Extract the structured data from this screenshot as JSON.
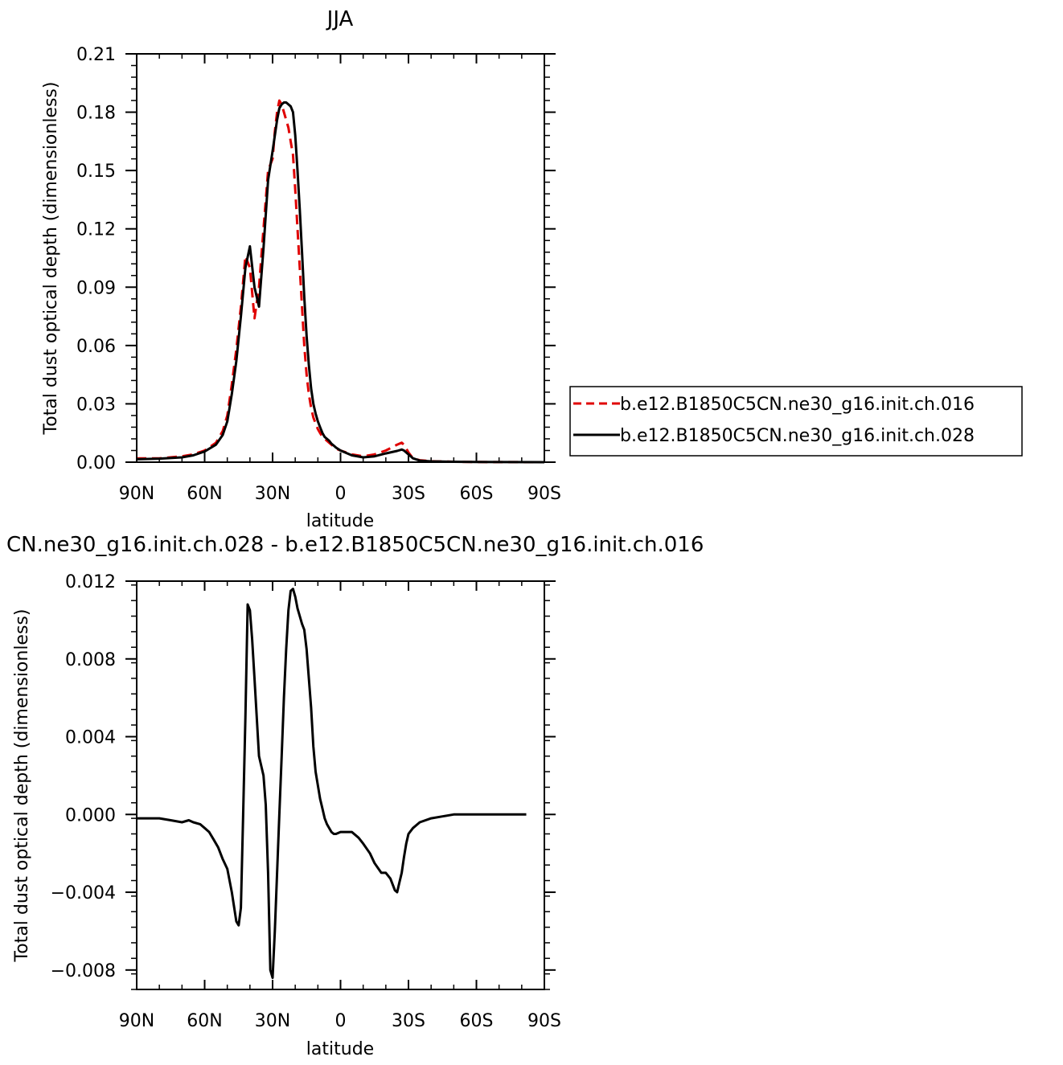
{
  "chart_data": [
    {
      "type": "line",
      "title": "JJA",
      "xlabel": "latitude",
      "ylabel": "Total dust optical depth (dimensionless)",
      "xlim": [
        90,
        -90
      ],
      "ylim": [
        0,
        0.21
      ],
      "xticks": [
        90,
        60,
        30,
        0,
        -30,
        -60,
        -90
      ],
      "xtick_labels": [
        "90N",
        "60N",
        "30N",
        "0",
        "30S",
        "60S",
        "90S"
      ],
      "yticks": [
        0,
        0.03,
        0.06,
        0.09,
        0.12,
        0.15,
        0.18,
        0.21
      ],
      "ytick_labels": [
        "0.00",
        "0.03",
        "0.06",
        "0.09",
        "0.12",
        "0.15",
        "0.18",
        "0.21"
      ],
      "grid": false,
      "legend_position": "right",
      "series": [
        {
          "name": "b.e12.B1850C5CN.ne30_g16.init.ch.016",
          "color": "#e00000",
          "dash": "dashed",
          "x": [
            90,
            80,
            70,
            65,
            60,
            55,
            52,
            50,
            48,
            46,
            44,
            42,
            40,
            38,
            36,
            34,
            32,
            30,
            29,
            28,
            27,
            26,
            25,
            24,
            23,
            22,
            21,
            20,
            19,
            18,
            17,
            16,
            15,
            14,
            13,
            12,
            11,
            10,
            9,
            8,
            7,
            6,
            5,
            4,
            3,
            2,
            0,
            -5,
            -10,
            -15,
            -20,
            -25,
            -27,
            -28,
            -30,
            -32,
            -35,
            -40,
            -50,
            -60,
            -90
          ],
          "y": [
            0.002,
            0.002,
            0.003,
            0.004,
            0.006,
            0.01,
            0.016,
            0.024,
            0.04,
            0.058,
            0.08,
            0.106,
            0.1,
            0.074,
            0.09,
            0.12,
            0.15,
            0.156,
            0.17,
            0.18,
            0.186,
            0.184,
            0.18,
            0.176,
            0.172,
            0.165,
            0.158,
            0.14,
            0.12,
            0.1,
            0.08,
            0.06,
            0.045,
            0.035,
            0.028,
            0.023,
            0.02,
            0.017,
            0.015,
            0.013,
            0.012,
            0.011,
            0.01,
            0.009,
            0.008,
            0.007,
            0.006,
            0.004,
            0.003,
            0.004,
            0.006,
            0.009,
            0.01,
            0.009,
            0.005,
            0.002,
            0.001,
            0.0005,
            0.0002,
            0.0001,
            0.0
          ]
        },
        {
          "name": "b.e12.B1850C5CN.ne30_g16.init.ch.028",
          "color": "#000000",
          "dash": "solid",
          "x": [
            90,
            80,
            70,
            65,
            60,
            55,
            52,
            50,
            48,
            46,
            44,
            42,
            40,
            38,
            36,
            34,
            32,
            30,
            29,
            28,
            27,
            26,
            25,
            24,
            23,
            22,
            21,
            20,
            19,
            18,
            17,
            16,
            15,
            14,
            13,
            12,
            11,
            10,
            9,
            8,
            7,
            6,
            5,
            4,
            3,
            2,
            0,
            -5,
            -10,
            -15,
            -20,
            -25,
            -27,
            -28,
            -30,
            -32,
            -35,
            -40,
            -50,
            -60,
            -90
          ],
          "y": [
            0.0015,
            0.0018,
            0.0025,
            0.0035,
            0.0055,
            0.009,
            0.014,
            0.021,
            0.035,
            0.052,
            0.075,
            0.1,
            0.111,
            0.09,
            0.08,
            0.11,
            0.145,
            0.16,
            0.168,
            0.176,
            0.182,
            0.184,
            0.185,
            0.185,
            0.184,
            0.183,
            0.18,
            0.168,
            0.15,
            0.13,
            0.108,
            0.085,
            0.065,
            0.05,
            0.038,
            0.03,
            0.025,
            0.021,
            0.018,
            0.015,
            0.013,
            0.012,
            0.011,
            0.0095,
            0.0085,
            0.0075,
            0.006,
            0.0035,
            0.0025,
            0.003,
            0.0045,
            0.0058,
            0.0065,
            0.006,
            0.004,
            0.002,
            0.0008,
            0.0004,
            0.0002,
            0.0001,
            0.0
          ]
        }
      ]
    },
    {
      "type": "line",
      "title": "CN.ne30_g16.init.ch.028 - b.e12.B1850C5CN.ne30_g16.init.ch.016",
      "xlabel": "latitude",
      "ylabel": "Total dust optical depth (dimensionless)",
      "xlim": [
        90,
        -90
      ],
      "ylim": [
        -0.009,
        0.012
      ],
      "xticks": [
        90,
        60,
        30,
        0,
        -30,
        -60,
        -90
      ],
      "xtick_labels": [
        "90N",
        "60N",
        "30N",
        "0",
        "30S",
        "60S",
        "90S"
      ],
      "yticks": [
        -0.008,
        -0.004,
        0.0,
        0.004,
        0.008,
        0.012
      ],
      "ytick_labels": [
        "-0.008",
        "-0.004",
        "0.000",
        "0.004",
        "0.008",
        "0.012"
      ],
      "grid": false,
      "series": [
        {
          "color": "#000000",
          "dash": "solid",
          "x": [
            90,
            80,
            75,
            70,
            67,
            65,
            62,
            60,
            58,
            56,
            54,
            52,
            50,
            48,
            46,
            45,
            44,
            43,
            42,
            41,
            40,
            39,
            38,
            37,
            36,
            35,
            34,
            33,
            32,
            31,
            30,
            29,
            28,
            27,
            26,
            25,
            24,
            23,
            22,
            21,
            20,
            19,
            18,
            17,
            16,
            15,
            14,
            13,
            12,
            11,
            10,
            9,
            8,
            7,
            6,
            5,
            4,
            3,
            2,
            0,
            -3,
            -5,
            -8,
            -10,
            -13,
            -15,
            -18,
            -20,
            -22,
            -24,
            -25,
            -26,
            -27,
            -28,
            -29,
            -30,
            -32,
            -35,
            -40,
            -45,
            -50,
            -60,
            -80,
            -82
          ],
          "y": [
            -0.0002,
            -0.0002,
            -0.0003,
            -0.0004,
            -0.0003,
            -0.0004,
            -0.0005,
            -0.0007,
            -0.0009,
            -0.0013,
            -0.0017,
            -0.0023,
            -0.0028,
            -0.004,
            -0.0055,
            -0.0057,
            -0.0048,
            0.0,
            0.005,
            0.0108,
            0.0105,
            0.009,
            0.007,
            0.005,
            0.003,
            0.0025,
            0.002,
            0.0005,
            -0.003,
            -0.008,
            -0.0084,
            -0.006,
            -0.003,
            0.0,
            0.003,
            0.006,
            0.0085,
            0.0105,
            0.0115,
            0.0116,
            0.0112,
            0.0106,
            0.0102,
            0.0098,
            0.0095,
            0.0085,
            0.007,
            0.0055,
            0.0035,
            0.0022,
            0.0015,
            0.0008,
            0.0003,
            -0.0002,
            -0.0005,
            -0.0007,
            -0.0009,
            -0.001,
            -0.001,
            -0.0009,
            -0.0009,
            -0.0009,
            -0.0012,
            -0.0015,
            -0.002,
            -0.0025,
            -0.003,
            -0.003,
            -0.0033,
            -0.0039,
            -0.004,
            -0.0035,
            -0.003,
            -0.0022,
            -0.0015,
            -0.001,
            -0.0007,
            -0.0004,
            -0.0002,
            -0.0001,
            0.0,
            0.0,
            0.0,
            0.0
          ]
        }
      ]
    }
  ]
}
